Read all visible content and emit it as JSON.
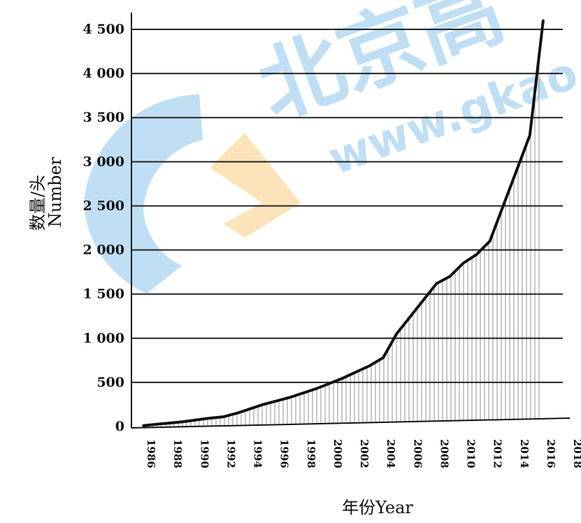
{
  "chart_data": {
    "type": "area",
    "title": "",
    "ylabel_cn": "数量/头",
    "ylabel_en": "Number",
    "xlabel": "年份Year",
    "ylim": [
      0,
      4500
    ],
    "y_ticks": [
      "0",
      "500",
      "1 000",
      "1 500",
      "2 000",
      "2 500",
      "3 000",
      "3 500",
      "4 000",
      "4 500"
    ],
    "x_ticks": [
      "1986",
      "1988",
      "1990",
      "1992",
      "1994",
      "1996",
      "1998",
      "2000",
      "2002",
      "2004",
      "2006",
      "2008",
      "2010",
      "2012",
      "2014",
      "2016",
      "2018"
    ],
    "grid": "horizontal",
    "fill": "vertical hatch under curve",
    "series": [
      {
        "x": [
          1986,
          1987,
          1988,
          1989,
          1990,
          1991,
          1992,
          1993,
          1994,
          1995,
          1996,
          1997,
          1998,
          1999,
          2000,
          2001,
          2002,
          2003,
          2004,
          2005,
          2006,
          2007,
          2008,
          2009,
          2010,
          2011,
          2012,
          2013,
          2014,
          2015,
          2016
        ],
        "y": [
          10,
          25,
          40,
          55,
          75,
          95,
          110,
          150,
          200,
          250,
          290,
          330,
          380,
          430,
          490,
          550,
          620,
          690,
          780,
          1050,
          1240,
          1430,
          1620,
          1700,
          1850,
          1950,
          2100,
          2500,
          2900,
          3300,
          4600
        ]
      }
    ]
  },
  "watermark": {
    "cn": "北京高",
    "en": "www.gkao"
  }
}
